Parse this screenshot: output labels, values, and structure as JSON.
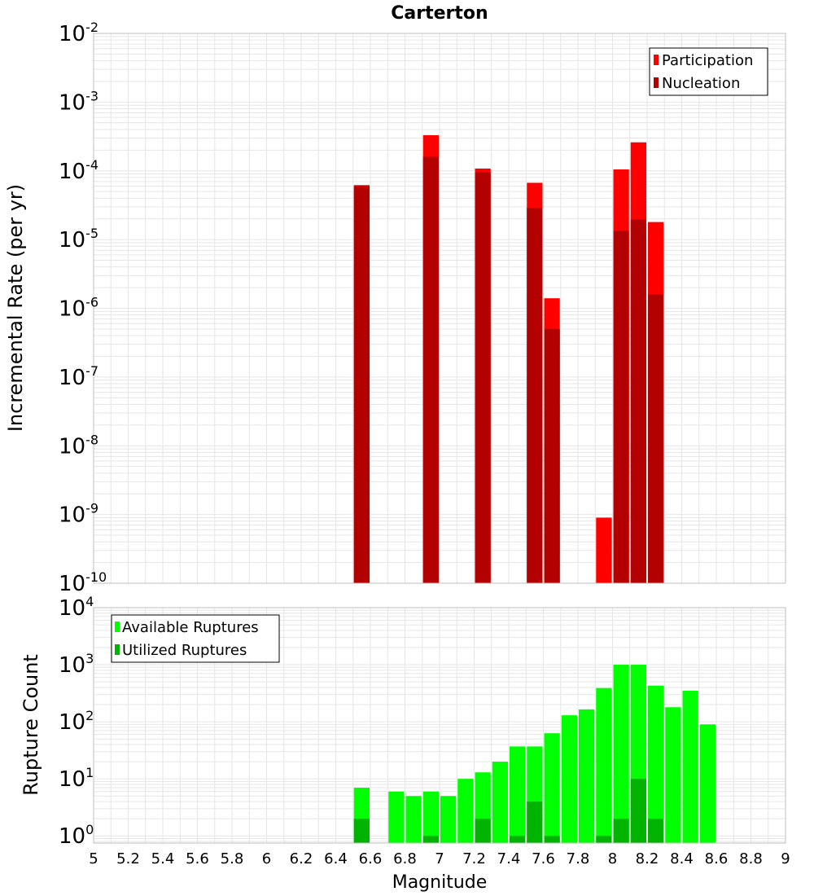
{
  "colors": {
    "participation": "#ff0000",
    "nucleation": "#b30000",
    "available": "#00ff00",
    "utilized": "#00b300",
    "grid": "#e6e6e6",
    "frame": "#bfbfbf"
  },
  "chart_data": {
    "type": "bar",
    "title": "Carterton",
    "xlabel": "Magnitude",
    "xlim": [
      5,
      9
    ],
    "xticks": [
      5,
      5.2,
      5.4,
      5.6,
      5.8,
      6,
      6.2,
      6.4,
      6.6,
      6.8,
      7,
      7.2,
      7.4,
      7.6,
      7.8,
      8,
      8.2,
      8.4,
      8.6,
      8.8,
      9
    ],
    "xtick_labels": [
      "5",
      "5.2",
      "5.4",
      "5.6",
      "5.8",
      "6",
      "6.2",
      "6.4",
      "6.6",
      "6.8",
      "7",
      "7.2",
      "7.4",
      "7.6",
      "7.8",
      "8",
      "8.2",
      "8.4",
      "8.6",
      "8.8",
      "9"
    ],
    "bin_width": 0.1,
    "panels": [
      {
        "ylabel": "Incremental Rate (per yr)",
        "yscale": "log",
        "ylim": [
          1e-10,
          0.01
        ],
        "y_exponents": [
          "-10",
          "-9",
          "-8",
          "-7",
          "-6",
          "-5",
          "-4",
          "-3",
          "-2"
        ],
        "legend_position": "top-right",
        "series": [
          {
            "name": "Participation",
            "x": [
              6.55,
              6.95,
              7.25,
              7.55,
              7.65,
              7.95,
              8.05,
              8.15,
              8.25
            ],
            "values": [
              6.2e-05,
              0.00033,
              0.000108,
              6.7e-05,
              1.4e-06,
              9e-10,
              0.000105,
              0.00026,
              1.8e-05
            ]
          },
          {
            "name": "Nucleation",
            "x": [
              6.55,
              6.95,
              7.25,
              7.55,
              7.65,
              8.05,
              8.15,
              8.25
            ],
            "values": [
              6e-05,
              0.00016,
              9.5e-05,
              2.9e-05,
              5e-07,
              1.35e-05,
              1.95e-05,
              1.6e-06
            ]
          }
        ]
      },
      {
        "ylabel": "Rupture Count",
        "yscale": "log",
        "ylim": [
          0.75,
          10000
        ],
        "y_exponents": [
          "0",
          "1",
          "2",
          "3",
          "4"
        ],
        "legend_position": "top-left",
        "series": [
          {
            "name": "Available Ruptures",
            "x": [
              6.55,
              6.75,
              6.85,
              6.95,
              7.05,
              7.15,
              7.25,
              7.35,
              7.45,
              7.55,
              7.65,
              7.75,
              7.85,
              7.95,
              8.05,
              8.15,
              8.25,
              8.35,
              8.45,
              8.55
            ],
            "values": [
              7,
              6,
              5,
              6,
              5,
              10,
              13,
              20,
              37,
              37,
              63,
              130,
              165,
              390,
              1000,
              1000,
              430,
              180,
              350,
              90
            ]
          },
          {
            "name": "Utilized Ruptures",
            "x": [
              6.55,
              6.95,
              7.25,
              7.45,
              7.55,
              7.65,
              7.95,
              8.05,
              8.15,
              8.25
            ],
            "values": [
              2,
              1,
              2,
              1,
              4,
              1,
              1,
              2,
              10,
              2
            ]
          }
        ]
      }
    ]
  }
}
